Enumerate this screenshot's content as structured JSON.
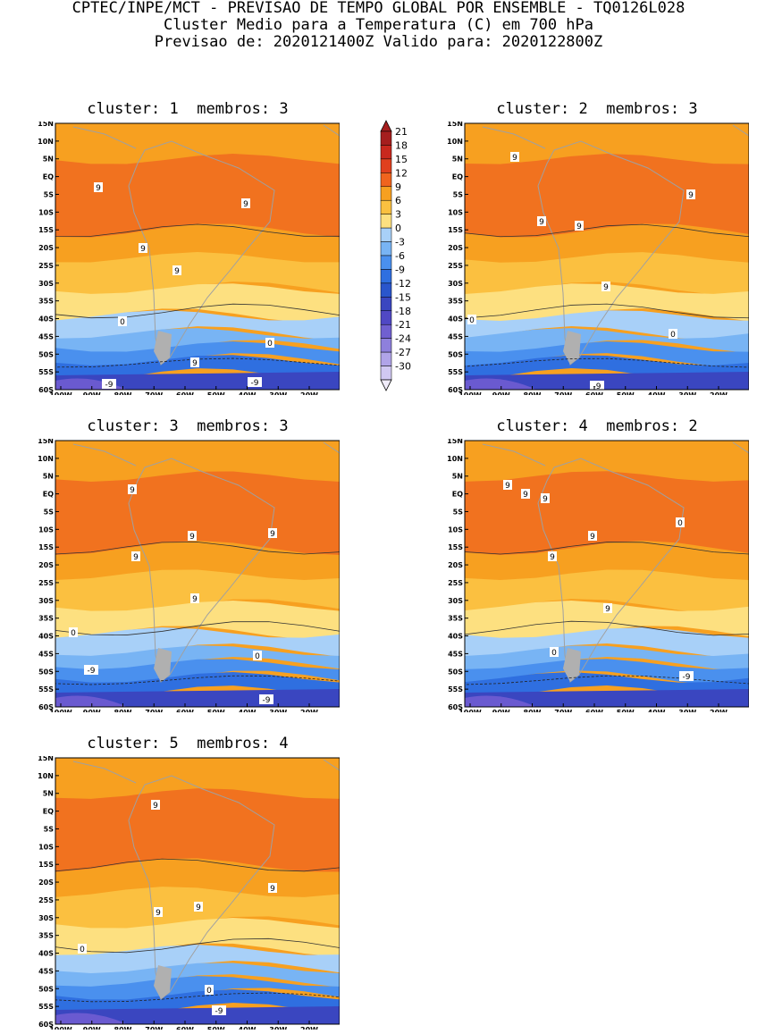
{
  "header": {
    "line1": "CPTEC/INPE/MCT - PREVISAO DE TEMPO GLOBAL POR ENSEMBLE - TQ0126L028",
    "line2": "Cluster Medio para a Temperatura (C) em 700 hPa",
    "line3": "Previsao de: 2020121400Z   Valido para: 2020122800Z"
  },
  "lat_ticks": [
    "15N",
    "10N",
    "5N",
    "EQ",
    "5S",
    "10S",
    "15S",
    "20S",
    "25S",
    "30S",
    "35S",
    "40S",
    "45S",
    "50S",
    "55S",
    "60S"
  ],
  "lon_ticks": [
    "100W",
    "90W",
    "80W",
    "70W",
    "60W",
    "50W",
    "40W",
    "30W",
    "20W"
  ],
  "colorbar": {
    "levels": [
      "21",
      "18",
      "15",
      "12",
      "9",
      "6",
      "3",
      "0",
      "-3",
      "-6",
      "-9",
      "-12",
      "-15",
      "-18",
      "-21",
      "-24",
      "-27",
      "-30"
    ],
    "colors": [
      "#a51e1e",
      "#c8281e",
      "#e0401e",
      "#f0641e",
      "#f7a020",
      "#fac040",
      "#fde080",
      "#a8d0f8",
      "#78b4f4",
      "#4a90ee",
      "#2f6fe0",
      "#2a56cc",
      "#3a46c0",
      "#5048c4",
      "#7060d0",
      "#8e80dc",
      "#b0a4e8",
      "#d0c8f2"
    ]
  },
  "clusters": [
    {
      "id": 1,
      "title_prefix": "cluster:",
      "number": "1",
      "members_label": "membros:",
      "members": "3",
      "contour_labels": [
        "9",
        "9",
        "9",
        "9",
        "9",
        "0",
        "0",
        "-9",
        "-9"
      ]
    },
    {
      "id": 2,
      "title_prefix": "cluster:",
      "number": "2",
      "members_label": "membros:",
      "members": "3",
      "contour_labels": [
        "9",
        "9",
        "9",
        "9",
        "9",
        "0",
        "0",
        "-9"
      ]
    },
    {
      "id": 3,
      "title_prefix": "cluster:",
      "number": "3",
      "members_label": "membros:",
      "members": "3",
      "contour_labels": [
        "9",
        "9",
        "9",
        "9",
        "9",
        "0",
        "0",
        "-9",
        "-9"
      ]
    },
    {
      "id": 4,
      "title_prefix": "cluster:",
      "number": "4",
      "members_label": "membros:",
      "members": "2",
      "contour_labels": [
        "9",
        "9",
        "9",
        "9",
        "9",
        "9",
        "0",
        "0",
        "-9"
      ]
    },
    {
      "id": 5,
      "title_prefix": "cluster:",
      "number": "5",
      "members_label": "membros:",
      "members": "4",
      "contour_labels": [
        "9",
        "9",
        "9",
        "9",
        "0",
        "0",
        "-9"
      ]
    }
  ]
}
